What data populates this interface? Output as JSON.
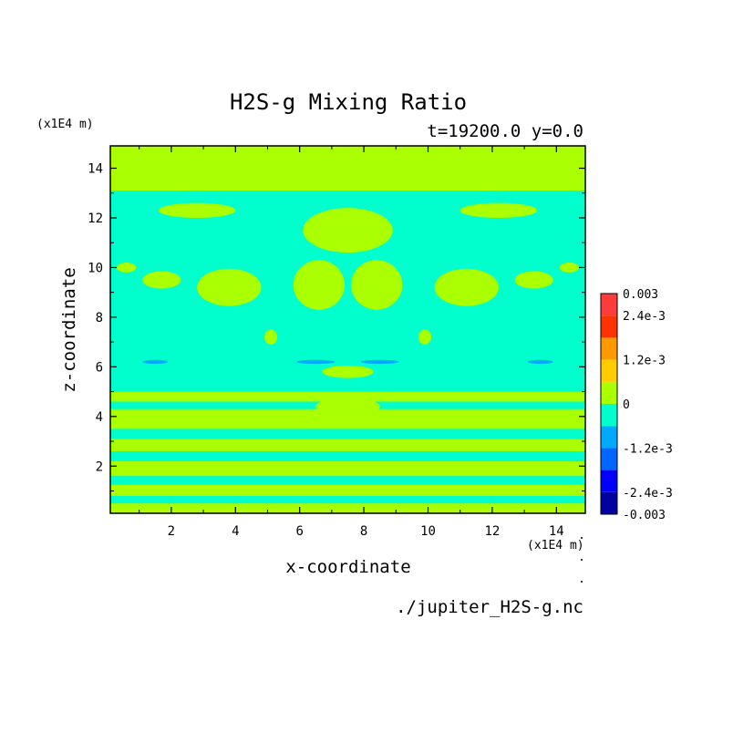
{
  "title": "H2S-g Mixing Ratio",
  "subtitle": "t=19200.0 y=0.0",
  "source_file": "./jupiter_H2S-g.nc",
  "colors": {
    "near_zero_positive": "#aaff00",
    "near_zero_negative": "#00ffcc"
  },
  "chart_data": {
    "type": "heatmap",
    "title": "H2S-g Mixing Ratio",
    "subtitle": "t=19200.0 y=0.0",
    "xlabel": "x-coordinate",
    "ylabel": "z-coordinate",
    "x_unit": "(x1E4 m)",
    "y_unit": "(x1E4 m)",
    "xlim": [
      0.1,
      14.9
    ],
    "ylim": [
      0.1,
      14.9
    ],
    "x_ticks": [
      2,
      4,
      6,
      8,
      10,
      12,
      14
    ],
    "y_ticks": [
      2,
      4,
      6,
      8,
      10,
      12,
      14
    ],
    "x_tick_labels": [
      "2",
      "4",
      "6",
      "8",
      "10",
      "12",
      "14"
    ],
    "y_tick_labels": [
      "2",
      "4",
      "6",
      "8",
      "10",
      "12",
      "14"
    ],
    "colorbar": {
      "levels": [
        -0.003,
        -0.0024,
        -0.0018,
        -0.0012,
        -0.0006,
        0,
        0.0006,
        0.0012,
        0.0018,
        0.0024,
        0.003
      ],
      "colors": [
        "#0000a0",
        "#0000ff",
        "#0066ff",
        "#00aaff",
        "#00ffcc",
        "#aaff00",
        "#ffcc00",
        "#ff9900",
        "#ff3300",
        "#ff3b3b"
      ],
      "tick_values": [
        0.003,
        0.0024,
        0.0012,
        0,
        -0.0012,
        -0.0024,
        -0.003
      ],
      "tick_labels": [
        "0.003",
        "2.4e-3",
        "1.2e-3",
        "0",
        "-1.2e-3",
        "-2.4e-3",
        "-0.003"
      ]
    },
    "bands_z": [
      {
        "z0": 0.1,
        "z1": 0.5,
        "sign": "positive"
      },
      {
        "z0": 0.5,
        "z1": 0.8,
        "sign": "negative"
      },
      {
        "z0": 0.8,
        "z1": 1.25,
        "sign": "positive"
      },
      {
        "z0": 1.25,
        "z1": 1.6,
        "sign": "negative"
      },
      {
        "z0": 1.6,
        "z1": 2.2,
        "sign": "positive"
      },
      {
        "z0": 2.2,
        "z1": 2.6,
        "sign": "negative"
      },
      {
        "z0": 2.6,
        "z1": 3.1,
        "sign": "positive"
      },
      {
        "z0": 3.1,
        "z1": 3.5,
        "sign": "negative"
      },
      {
        "z0": 3.5,
        "z1": 4.3,
        "sign": "positive"
      },
      {
        "z0": 4.3,
        "z1": 4.6,
        "sign": "negative"
      },
      {
        "z0": 4.6,
        "z1": 5.0,
        "sign": "positive"
      },
      {
        "z0": 5.0,
        "z1": 5.5,
        "sign": "negative"
      },
      {
        "z0": 5.5,
        "z1": 12.5,
        "sign": "negative"
      },
      {
        "z0": 12.5,
        "z1": 13.1,
        "sign": "negative"
      },
      {
        "z0": 13.1,
        "z1": 14.9,
        "sign": "positive"
      }
    ],
    "regions_positive": [
      {
        "x": 3.8,
        "z": 9.2,
        "rx": 1.0,
        "rz": 0.75
      },
      {
        "x": 11.2,
        "z": 9.2,
        "rx": 1.0,
        "rz": 0.75
      },
      {
        "x": 6.6,
        "z": 9.3,
        "rx": 0.8,
        "rz": 1.0
      },
      {
        "x": 8.4,
        "z": 9.3,
        "rx": 0.8,
        "rz": 1.0
      },
      {
        "x": 7.5,
        "z": 11.5,
        "rx": 1.4,
        "rz": 0.9
      },
      {
        "x": 1.7,
        "z": 9.5,
        "rx": 0.6,
        "rz": 0.35
      },
      {
        "x": 13.3,
        "z": 9.5,
        "rx": 0.6,
        "rz": 0.35
      },
      {
        "x": 0.6,
        "z": 10.0,
        "rx": 0.3,
        "rz": 0.2
      },
      {
        "x": 14.4,
        "z": 10.0,
        "rx": 0.3,
        "rz": 0.2
      },
      {
        "x": 7.5,
        "z": 5.8,
        "rx": 0.8,
        "rz": 0.25
      },
      {
        "x": 5.1,
        "z": 7.2,
        "rx": 0.2,
        "rz": 0.3
      },
      {
        "x": 9.9,
        "z": 7.2,
        "rx": 0.2,
        "rz": 0.3
      },
      {
        "x": 2.8,
        "z": 12.3,
        "rx": 1.2,
        "rz": 0.3
      },
      {
        "x": 12.2,
        "z": 12.3,
        "rx": 1.2,
        "rz": 0.3
      },
      {
        "x": 7.5,
        "z": 4.4,
        "rx": 1.0,
        "rz": 0.35
      }
    ],
    "regions_negative": [
      {
        "x": 1.5,
        "z": 6.2,
        "rx": 0.4,
        "rz": 0.08
      },
      {
        "x": 13.5,
        "z": 6.2,
        "rx": 0.4,
        "rz": 0.08
      },
      {
        "x": 6.5,
        "z": 6.2,
        "rx": 0.6,
        "rz": 0.08
      },
      {
        "x": 8.5,
        "z": 6.2,
        "rx": 0.6,
        "rz": 0.08
      }
    ]
  }
}
